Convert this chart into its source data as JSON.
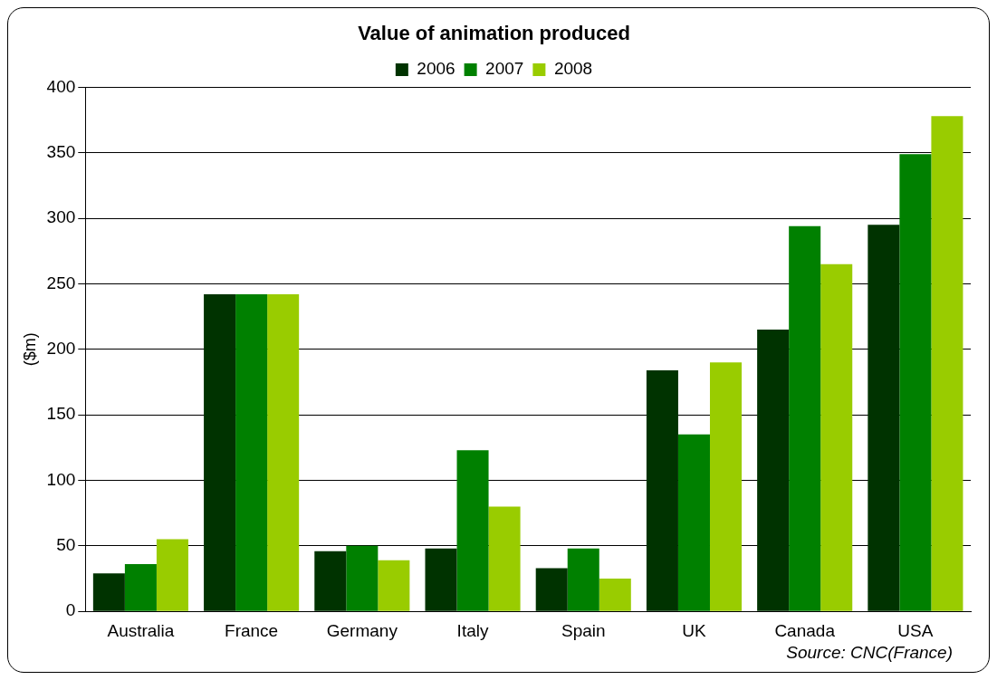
{
  "chart_data": {
    "type": "bar",
    "title": "Value of animation produced",
    "ylabel": "($m)",
    "categories": [
      "Australia",
      "France",
      "Germany",
      "Italy",
      "Spain",
      "UK",
      "Canada",
      "USA"
    ],
    "series": [
      {
        "name": "2006",
        "color": "#003300",
        "values": [
          29,
          242,
          46,
          48,
          33,
          184,
          215,
          295
        ]
      },
      {
        "name": "2007",
        "color": "#008000",
        "values": [
          36,
          242,
          50,
          123,
          48,
          135,
          294,
          349
        ]
      },
      {
        "name": "2008",
        "color": "#99cc00",
        "values": [
          55,
          242,
          39,
          80,
          25,
          190,
          265,
          378
        ]
      }
    ],
    "ylim": [
      0,
      400
    ],
    "yticks": [
      0,
      50,
      100,
      150,
      200,
      250,
      300,
      350,
      400
    ],
    "grid": "y",
    "legend": "top",
    "annotations": [
      "Source: CNC(France)"
    ]
  }
}
